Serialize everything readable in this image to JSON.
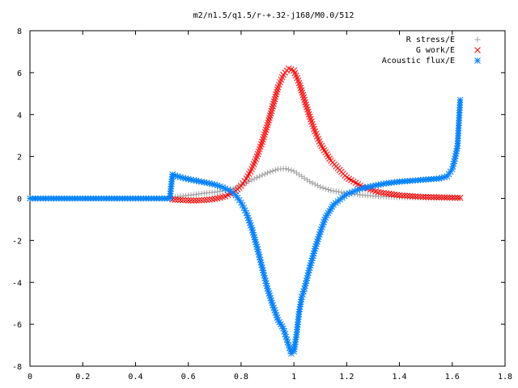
{
  "chart_data": {
    "type": "scatter",
    "title": "m2/n1.5/q1.5/r-+.32-j168/M0.0/512",
    "xlabel": "",
    "ylabel": "",
    "xlim": [
      0,
      1.8
    ],
    "ylim": [
      -8,
      8
    ],
    "xticks": [
      "0",
      "0.2",
      "0.4",
      "0.6",
      "0.8",
      "1",
      "1.2",
      "1.4",
      "1.6",
      "1.8"
    ],
    "yticks": [
      "-8",
      "-6",
      "-4",
      "-2",
      "0",
      "2",
      "4",
      "6",
      "8"
    ],
    "grid": false,
    "legend_position": "top-right",
    "series": [
      {
        "name": "R stress/E",
        "marker": "+",
        "color": "#a0a0a0",
        "x": [
          0.54,
          0.58,
          0.62,
          0.66,
          0.7,
          0.74,
          0.78,
          0.82,
          0.86,
          0.9,
          0.94,
          0.97,
          1.0,
          1.03,
          1.06,
          1.1,
          1.14,
          1.2,
          1.26,
          1.32,
          1.4,
          1.48,
          1.56,
          1.63
        ],
        "y": [
          0.05,
          0.12,
          0.18,
          0.25,
          0.3,
          0.38,
          0.5,
          0.75,
          1.0,
          1.22,
          1.4,
          1.42,
          1.3,
          1.05,
          0.8,
          0.55,
          0.38,
          0.25,
          0.16,
          0.1,
          0.06,
          0.04,
          0.03,
          0.02
        ]
      },
      {
        "name": "G work/E",
        "marker": "x",
        "color": "#ff0000",
        "x": [
          0.54,
          0.58,
          0.62,
          0.66,
          0.7,
          0.74,
          0.78,
          0.8,
          0.82,
          0.84,
          0.86,
          0.88,
          0.9,
          0.92,
          0.94,
          0.96,
          0.98,
          1.0,
          1.02,
          1.04,
          1.06,
          1.08,
          1.1,
          1.14,
          1.2,
          1.26,
          1.32,
          1.4,
          1.48,
          1.56,
          1.63
        ],
        "y": [
          -0.05,
          -0.08,
          -0.1,
          -0.08,
          -0.02,
          0.1,
          0.35,
          0.6,
          0.95,
          1.4,
          2.0,
          2.7,
          3.5,
          4.4,
          5.3,
          5.9,
          6.2,
          6.1,
          5.5,
          4.7,
          3.9,
          3.2,
          2.6,
          1.8,
          1.0,
          0.55,
          0.3,
          0.15,
          0.08,
          0.05,
          0.03
        ]
      },
      {
        "name": "Acoustic flux/E",
        "marker": "*",
        "color": "#0080ff",
        "x": [
          0.0,
          0.05,
          0.1,
          0.15,
          0.2,
          0.25,
          0.3,
          0.35,
          0.4,
          0.45,
          0.5,
          0.53,
          0.54,
          0.56,
          0.58,
          0.6,
          0.62,
          0.64,
          0.66,
          0.68,
          0.7,
          0.72,
          0.74,
          0.76,
          0.78,
          0.8,
          0.82,
          0.84,
          0.86,
          0.88,
          0.9,
          0.92,
          0.94,
          0.96,
          0.97,
          0.98,
          0.99,
          1.0,
          1.01,
          1.02,
          1.03,
          1.04,
          1.06,
          1.08,
          1.1,
          1.12,
          1.15,
          1.2,
          1.25,
          1.3,
          1.35,
          1.4,
          1.45,
          1.5,
          1.55,
          1.58,
          1.6,
          1.61,
          1.62,
          1.625,
          1.63
        ],
        "y": [
          0,
          0,
          0,
          0,
          0,
          0,
          0,
          0,
          0,
          0,
          0,
          0,
          1.15,
          1.05,
          0.98,
          0.92,
          0.87,
          0.82,
          0.77,
          0.72,
          0.66,
          0.58,
          0.48,
          0.35,
          0.15,
          -0.2,
          -0.7,
          -1.4,
          -2.3,
          -3.3,
          -4.3,
          -5.1,
          -5.8,
          -6.2,
          -6.6,
          -7.0,
          -7.4,
          -7.3,
          -6.5,
          -5.4,
          -4.7,
          -4.3,
          -3.3,
          -2.4,
          -1.6,
          -0.9,
          -0.3,
          0.2,
          0.45,
          0.6,
          0.72,
          0.8,
          0.85,
          0.9,
          0.95,
          1.05,
          1.4,
          1.9,
          2.5,
          3.6,
          4.7
        ]
      }
    ]
  }
}
